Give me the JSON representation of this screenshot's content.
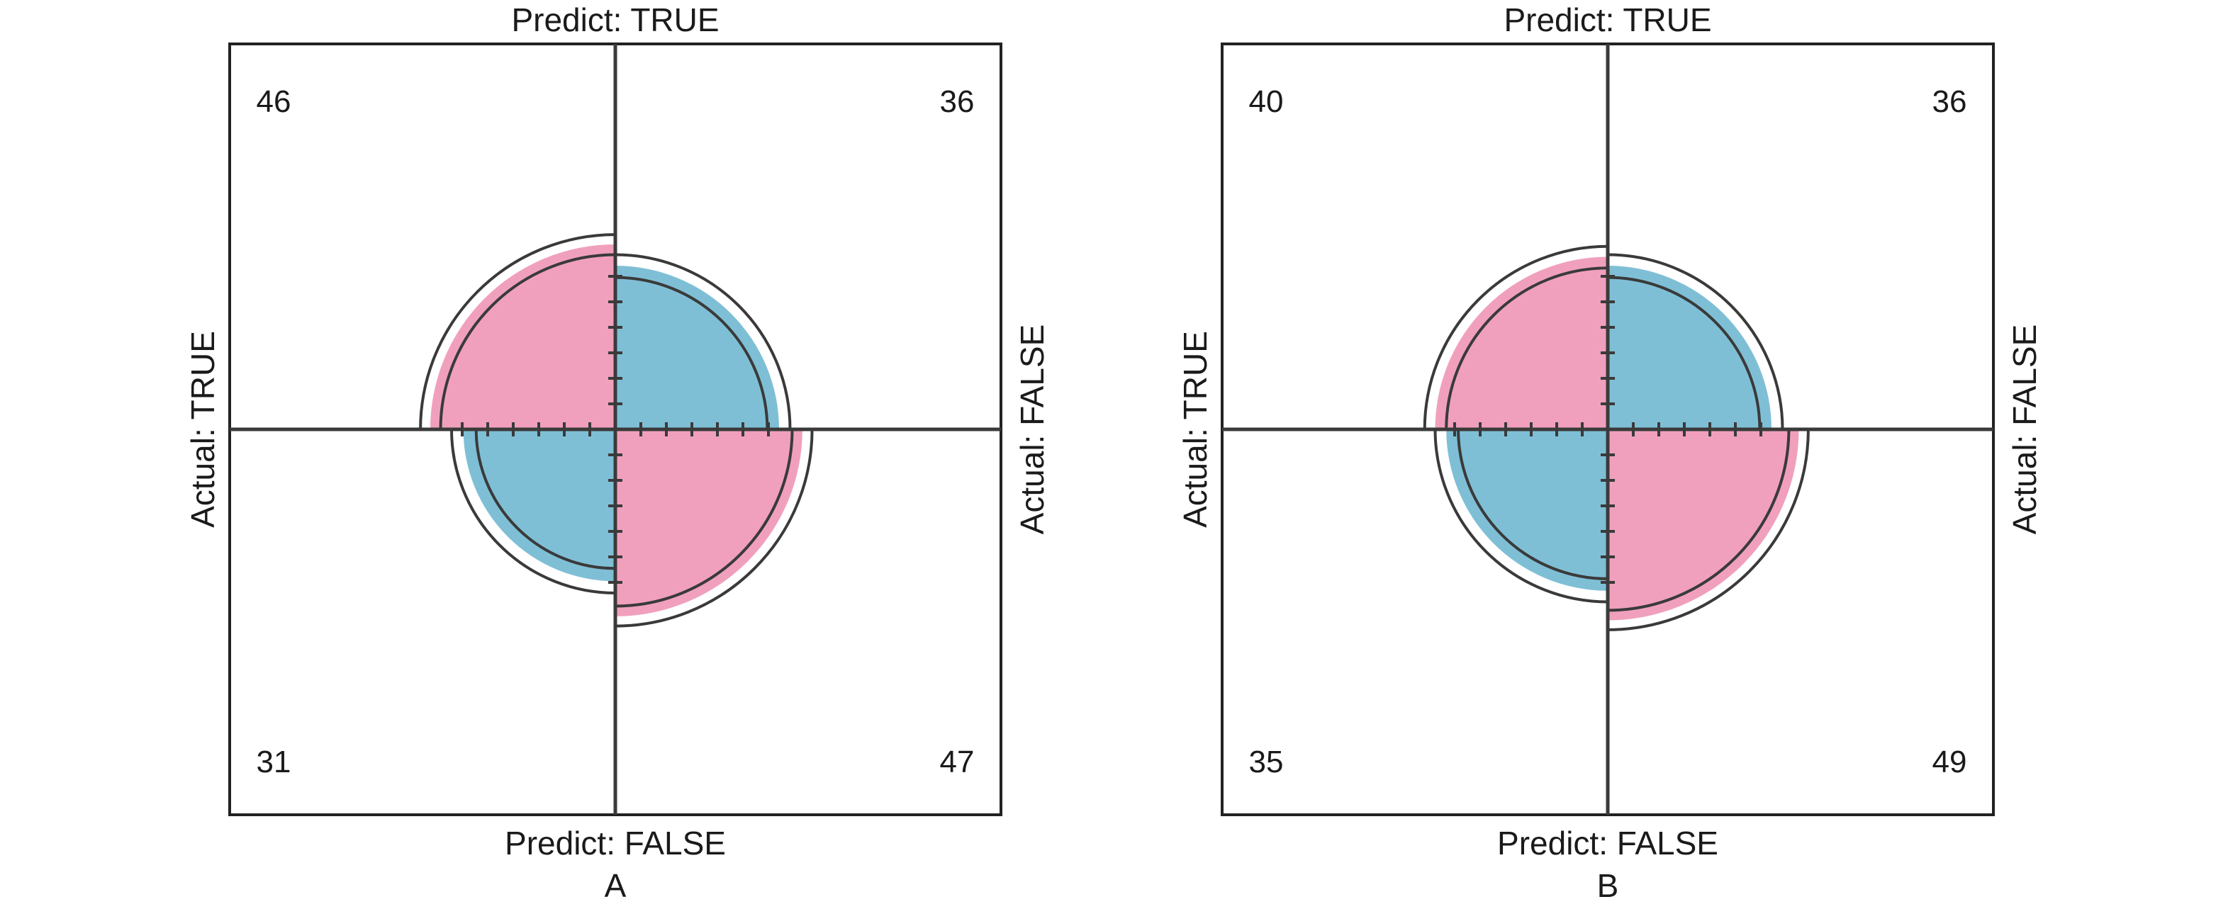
{
  "colors": {
    "true_fill": "#f0a0bd",
    "false_fill": "#7fbfd6",
    "line": "#3a3a3a",
    "frame": "#222222"
  },
  "chart_data": [
    {
      "type": "fourfold",
      "panel_label": "A",
      "labels": {
        "top": "Predict: TRUE",
        "bottom": "Predict: FALSE",
        "left": "Actual: TRUE",
        "right": "Actual: FALSE"
      },
      "cells": [
        {
          "quadrant": "top-left",
          "count": "46",
          "value": 46,
          "fill": "true_fill",
          "ci_inner": 41,
          "ci_outer": 51
        },
        {
          "quadrant": "top-right",
          "count": "36",
          "value": 36,
          "fill": "false_fill",
          "ci_inner": 31,
          "ci_outer": 41
        },
        {
          "quadrant": "bottom-left",
          "count": "31",
          "value": 31,
          "fill": "false_fill",
          "ci_inner": 26,
          "ci_outer": 36
        },
        {
          "quadrant": "bottom-right",
          "count": "47",
          "value": 47,
          "fill": "true_fill",
          "ci_inner": 42,
          "ci_outer": 52
        }
      ]
    },
    {
      "type": "fourfold",
      "panel_label": "B",
      "labels": {
        "top": "Predict: TRUE",
        "bottom": "Predict: FALSE",
        "left": "Actual: TRUE",
        "right": "Actual: FALSE"
      },
      "cells": [
        {
          "quadrant": "top-left",
          "count": "40",
          "value": 40,
          "fill": "true_fill",
          "ci_inner": 35,
          "ci_outer": 45
        },
        {
          "quadrant": "top-right",
          "count": "36",
          "value": 36,
          "fill": "false_fill",
          "ci_inner": 31,
          "ci_outer": 41
        },
        {
          "quadrant": "bottom-left",
          "count": "35",
          "value": 35,
          "fill": "false_fill",
          "ci_inner": 30,
          "ci_outer": 40
        },
        {
          "quadrant": "bottom-right",
          "count": "49",
          "value": 49,
          "fill": "true_fill",
          "ci_inner": 44,
          "ci_outer": 54
        }
      ]
    }
  ]
}
